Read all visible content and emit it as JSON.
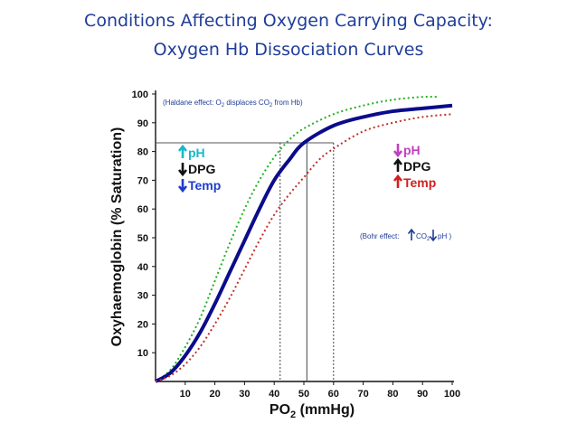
{
  "slide": {
    "title_line1": "Conditions Affecting Oxygen Carrying Capacity:",
    "title_line2": "Oxygen Hb Dissociation Curves"
  },
  "colors": {
    "title": "#1f3d99",
    "normal": "#0b0b8c",
    "left_shift": "#22b022",
    "right_shift": "#c0302b",
    "arrow_up_ph_left": "#18b8c8",
    "arrow_up_ph_right": "#c040c0"
  },
  "chart_data": {
    "type": "line",
    "xlabel_main": "PO",
    "xlabel_sub": "2",
    "xlabel_unit": " (mmHg)",
    "ylabel": "Oxyhaemoglobin (% Saturation)",
    "xlim": [
      0,
      100
    ],
    "ylim": [
      0,
      100
    ],
    "x_ticks": [
      10,
      20,
      30,
      40,
      50,
      60,
      70,
      80,
      90,
      100
    ],
    "y_ticks": [
      10,
      20,
      30,
      40,
      50,
      60,
      70,
      80,
      90,
      100
    ],
    "grid": false,
    "series": [
      {
        "style": "dotted",
        "color": "#22b022",
        "x": [
          0,
          5,
          10,
          15,
          20,
          25,
          30,
          35,
          40,
          45,
          50,
          60,
          70,
          80,
          90,
          95
        ],
        "y": [
          0,
          4,
          12,
          22,
          35,
          48,
          60,
          70,
          78,
          84,
          88,
          93,
          96,
          98,
          99,
          99
        ]
      },
      {
        "style": "solid",
        "color": "#0b0b8c",
        "x": [
          0,
          5,
          10,
          15,
          20,
          25,
          30,
          35,
          40,
          45,
          50,
          60,
          70,
          80,
          90,
          100
        ],
        "y": [
          0,
          3,
          9,
          17,
          27,
          38,
          49,
          60,
          70,
          77,
          83,
          89,
          92,
          94,
          95,
          96
        ]
      },
      {
        "style": "dotted",
        "color": "#c0302b",
        "x": [
          0,
          5,
          10,
          15,
          20,
          25,
          30,
          35,
          40,
          45,
          50,
          55,
          60,
          70,
          80,
          90,
          100
        ],
        "y": [
          0,
          2,
          6,
          12,
          20,
          29,
          39,
          49,
          58,
          65,
          71,
          77,
          81,
          87,
          90,
          92,
          93
        ]
      }
    ],
    "reference_lines": {
      "y": 83,
      "x": [
        42,
        51,
        60
      ]
    },
    "annotations": {
      "haldane": "(Haldane effect: O2 displaces CO2 from Hb)",
      "haldane_pre": "(Haldane effect: O",
      "haldane_mid1": "2",
      "haldane_mid2": " displaces CO",
      "haldane_mid3": "2",
      "haldane_post": " from Hb)",
      "bohr_pre": "(Bohr effect:",
      "bohr_co2": "CO",
      "bohr_sub": "2",
      "bohr_ph": "pH )"
    },
    "legend_left": [
      {
        "arrow": "up",
        "text": "pH",
        "color": "#18b8c8"
      },
      {
        "arrow": "down",
        "text": "DPG",
        "color": "#111111"
      },
      {
        "arrow": "down",
        "text": "Temp",
        "color": "#1f3dcc"
      }
    ],
    "legend_right": [
      {
        "arrow": "down",
        "text": "pH",
        "color": "#c040c0"
      },
      {
        "arrow": "up",
        "text": "DPG",
        "color": "#111111"
      },
      {
        "arrow": "up",
        "text": "Temp",
        "color": "#d02020"
      }
    ]
  }
}
